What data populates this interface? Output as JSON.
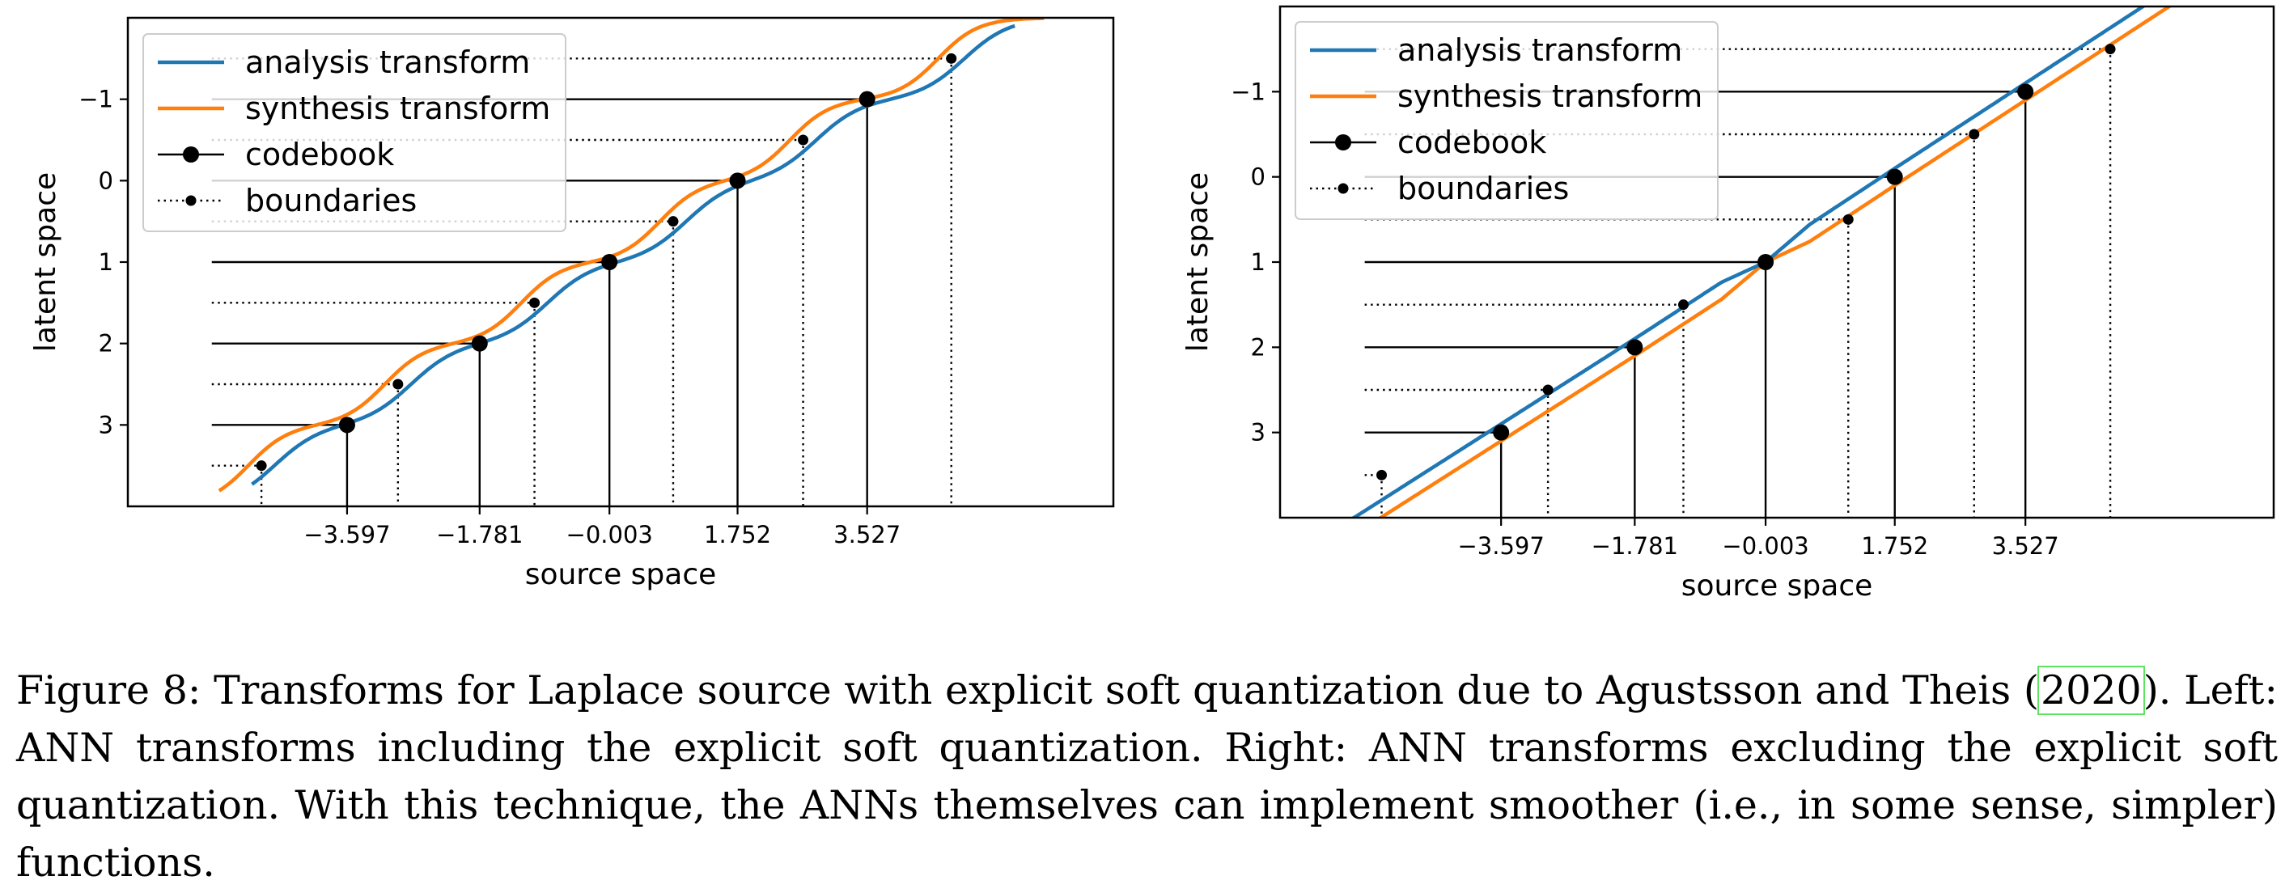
{
  "chart_data": [
    {
      "type": "line",
      "panel": "left",
      "xlabel": "source space",
      "ylabel": "latent space",
      "xlim": [
        -6.6,
        6.9
      ],
      "ylim": [
        4.0,
        -2.0
      ],
      "y_inverted": true,
      "xticks": [
        -3.597,
        -1.781,
        -0.003,
        1.752,
        3.527
      ],
      "xtick_labels": [
        "−3.597",
        "−1.781",
        "−0.003",
        "1.752",
        "3.527"
      ],
      "yticks": [
        -1,
        0,
        1,
        2,
        3
      ],
      "ytick_labels": [
        "−1",
        "0",
        "1",
        "2",
        "3"
      ],
      "legend_position": "upper-left",
      "legend": [
        "analysis transform",
        "synthesis transform",
        "codebook",
        "boundaries"
      ],
      "codebook": {
        "x": [
          -3.597,
          -1.781,
          -0.003,
          1.752,
          3.527
        ],
        "y": [
          3,
          2,
          1,
          0,
          -1
        ]
      },
      "boundaries": {
        "x": [
          -4.77,
          -2.9,
          -1.03,
          0.87,
          2.65,
          4.68
        ],
        "y": [
          3.5,
          2.5,
          1.5,
          0.5,
          -0.5,
          -1.5
        ]
      },
      "series": [
        {
          "name": "analysis transform",
          "color": "#1f77b4",
          "style": "staircase, steep near boundaries"
        },
        {
          "name": "synthesis transform",
          "color": "#ff7f0e",
          "style": "staircase, steep near boundaries"
        }
      ]
    },
    {
      "type": "line",
      "panel": "right",
      "xlabel": "source space",
      "ylabel": "latent space",
      "xlim": [
        -6.6,
        6.9
      ],
      "ylim": [
        4.0,
        -2.0
      ],
      "y_inverted": true,
      "xticks": [
        -3.597,
        -1.781,
        -0.003,
        1.752,
        3.527
      ],
      "xtick_labels": [
        "−3.597",
        "−1.781",
        "−0.003",
        "1.752",
        "3.527"
      ],
      "yticks": [
        -1,
        0,
        1,
        2,
        3
      ],
      "ytick_labels": [
        "−1",
        "0",
        "1",
        "2",
        "3"
      ],
      "legend_position": "upper-left",
      "legend": [
        "analysis transform",
        "synthesis transform",
        "codebook",
        "boundaries"
      ],
      "codebook": {
        "x": [
          -3.597,
          -1.781,
          -0.003,
          1.752,
          3.527
        ],
        "y": [
          3,
          2,
          1,
          0,
          -1
        ]
      },
      "boundaries": {
        "x": [
          -5.22,
          -2.96,
          -1.12,
          1.12,
          2.83,
          4.68
        ],
        "y": [
          3.5,
          2.5,
          1.5,
          0.5,
          -0.5,
          -1.5
        ]
      },
      "series": [
        {
          "name": "analysis transform",
          "color": "#1f77b4",
          "style": "smooth, nearly linear"
        },
        {
          "name": "synthesis transform",
          "color": "#ff7f0e",
          "style": "smooth, nearly linear"
        }
      ]
    }
  ],
  "caption": {
    "prefix": "Figure 8: Transforms for Laplace source with explicit soft quantization due to Agustsson and Theis (",
    "citation_year": "2020",
    "suffix": "). Left: ANN transforms including the explicit soft quantization. Right: ANN transforms excluding the explicit soft quantization. With this technique, the ANNs themselves can implement smoother (i.e., in some sense, simpler) functions."
  }
}
